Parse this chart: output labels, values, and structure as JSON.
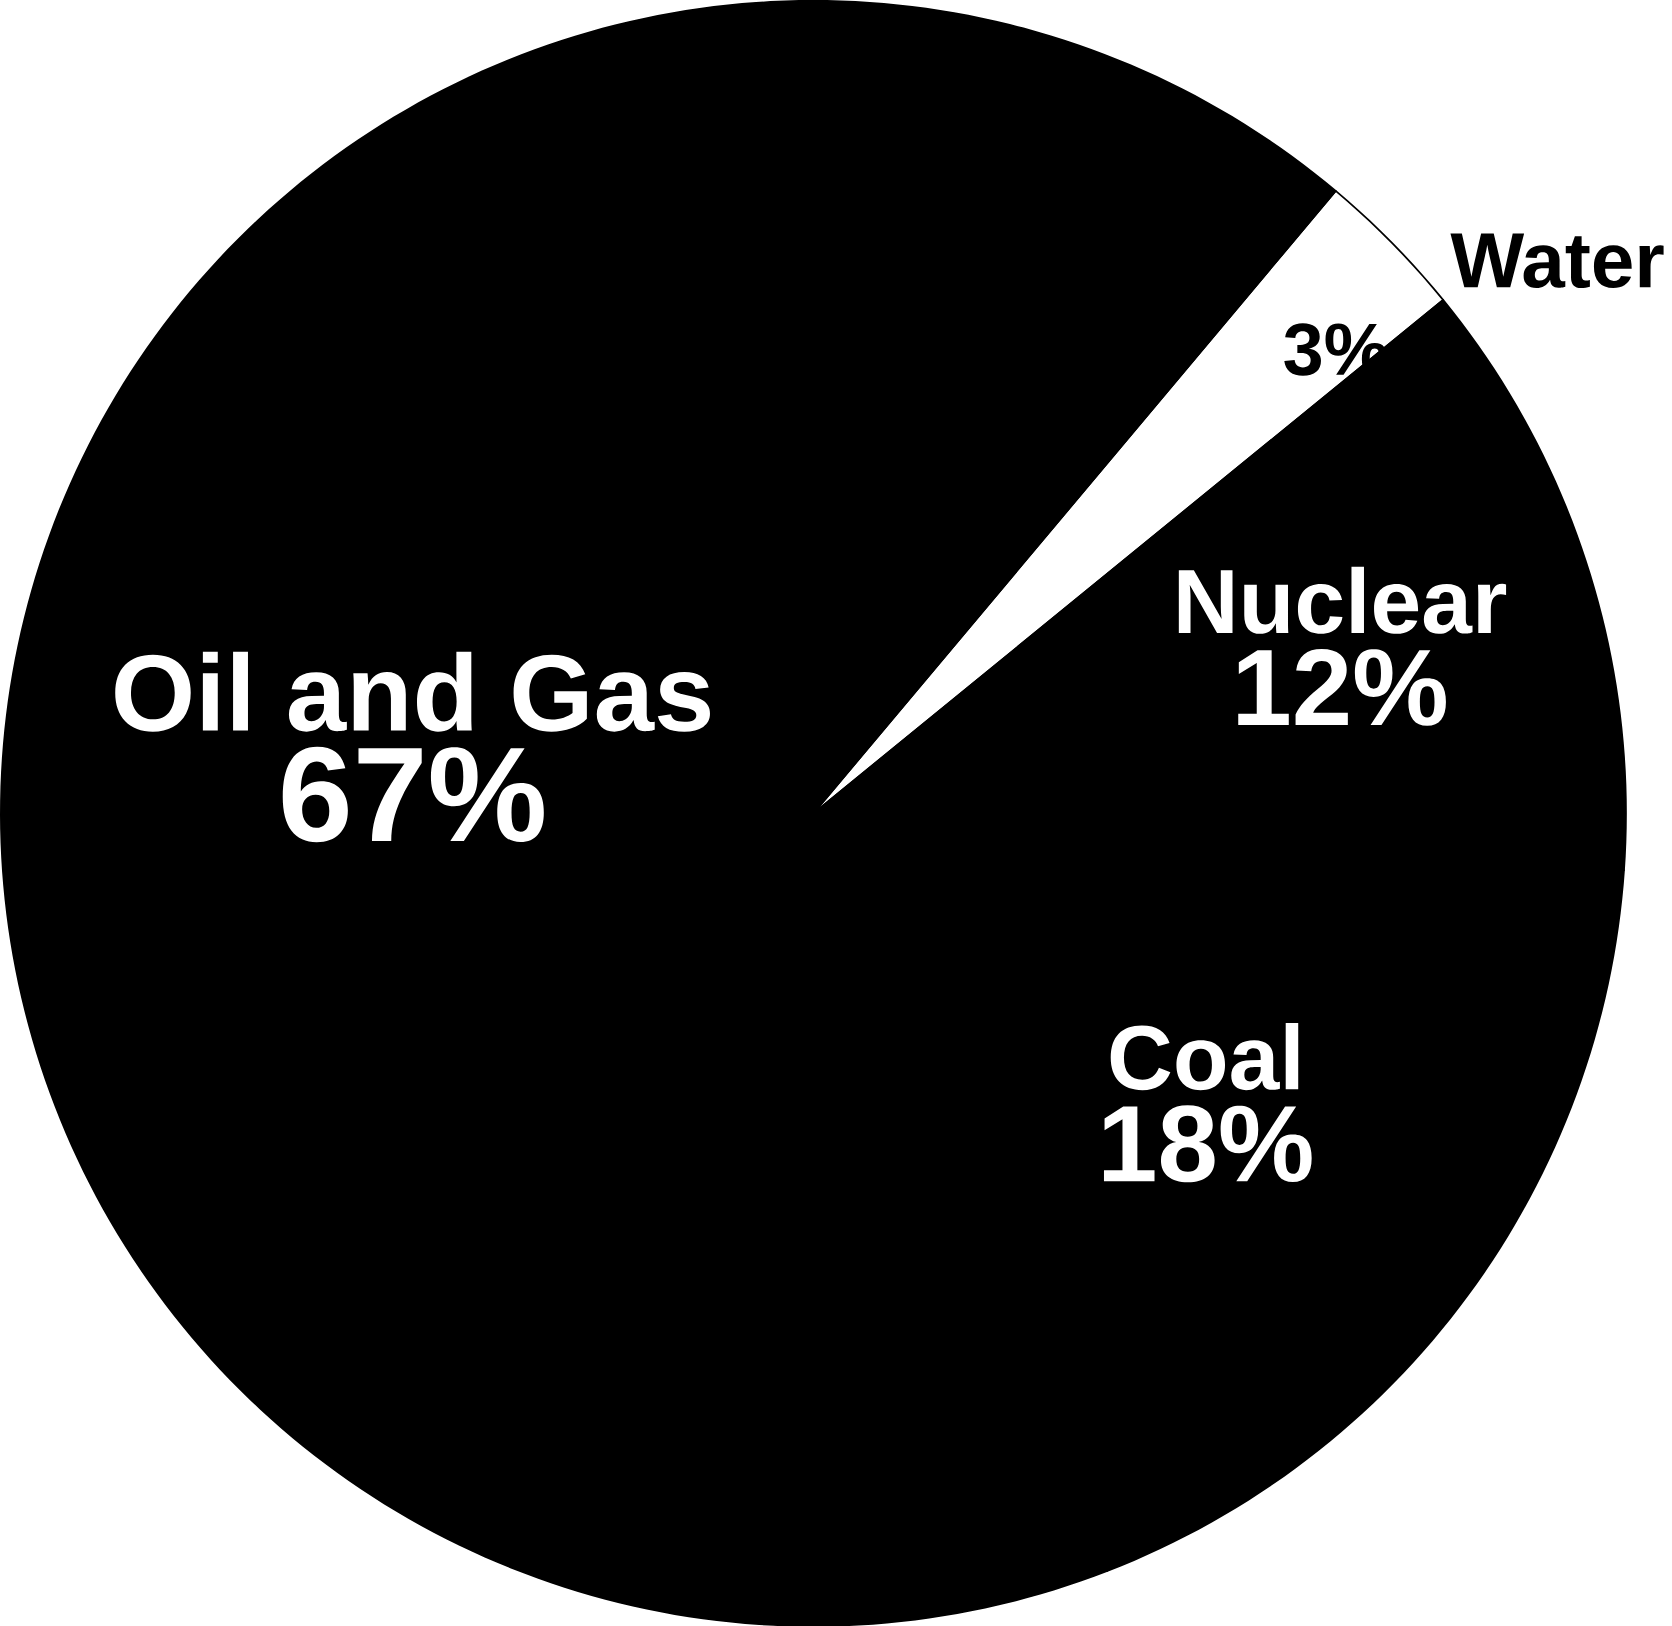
{
  "chart_data": {
    "type": "pie",
    "categories": [
      "Water",
      "Nuclear",
      "Coal",
      "Oil and Gas"
    ],
    "values": [
      3,
      12,
      18,
      67
    ],
    "value_labels": [
      "3%",
      "12%",
      "18%",
      "67%"
    ],
    "colors": [
      "#ffffff",
      "#000000",
      "#000000",
      "#000000"
    ]
  }
}
